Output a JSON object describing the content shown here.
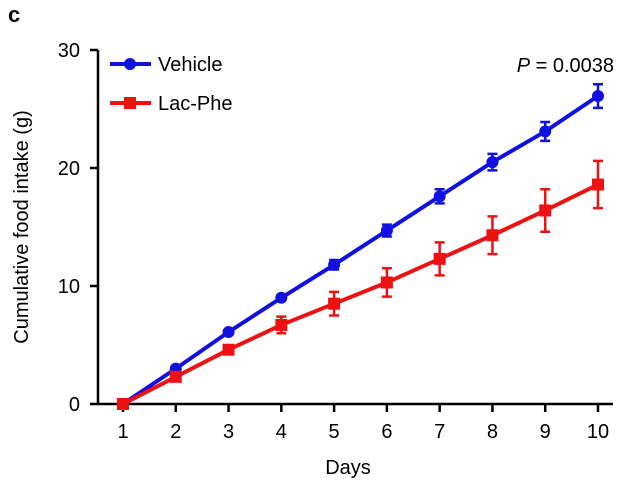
{
  "panel_label": "c",
  "chart_data": {
    "type": "line",
    "title": "",
    "xlabel": "Days",
    "ylabel": "Cumulative food intake (g)",
    "x": [
      1,
      2,
      3,
      4,
      5,
      6,
      7,
      8,
      9,
      10
    ],
    "xlim": [
      0.6,
      10.4
    ],
    "ylim": [
      0,
      30
    ],
    "yticks": [
      0,
      10,
      20,
      30
    ],
    "grid": false,
    "legend_position": "top-left",
    "annotation": "P = 0.0038",
    "annotation_italic": "P",
    "annotation_rest": " = 0.0038",
    "series": [
      {
        "name": "Vehicle",
        "color": "#1010e0",
        "marker": "circle",
        "values": [
          0,
          3.0,
          6.1,
          9.0,
          11.8,
          14.7,
          17.6,
          20.5,
          23.1,
          26.1
        ],
        "errors": [
          0.2,
          0.2,
          0.2,
          0.2,
          0.4,
          0.5,
          0.6,
          0.7,
          0.8,
          1.0
        ]
      },
      {
        "name": "Lac-Phe",
        "color": "#ee1111",
        "marker": "square",
        "values": [
          0,
          2.3,
          4.6,
          6.7,
          8.5,
          10.3,
          12.3,
          14.3,
          16.4,
          18.6
        ],
        "errors": [
          0.1,
          0.2,
          0.3,
          0.7,
          1.0,
          1.2,
          1.4,
          1.6,
          1.8,
          2.0
        ]
      }
    ]
  }
}
